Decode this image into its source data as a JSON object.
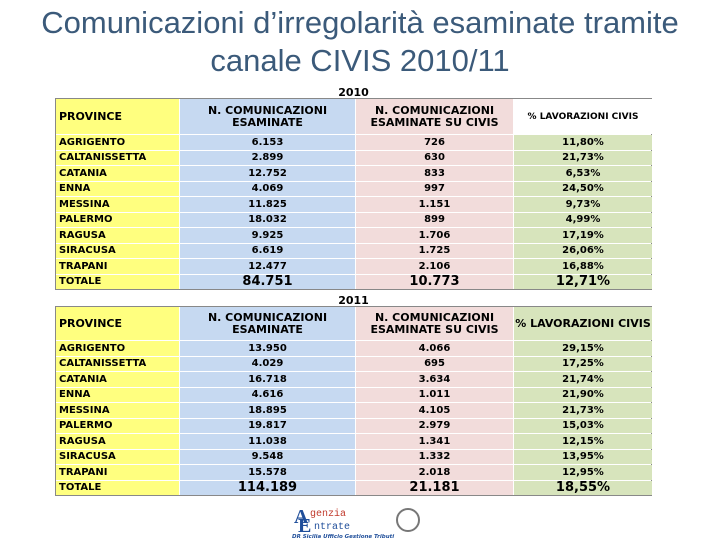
{
  "title": "Comunicazioni d’irregolarità esaminate tramite canale CIVIS 2010/11",
  "tables": [
    {
      "year": "2010",
      "headers": [
        "PROVINCE",
        "N. COMUNICAZIONI ESAMINATE",
        "N. COMUNICAZIONI ESAMINATE SU CIVIS",
        "% LAVORAZIONI CIVIS"
      ],
      "rows": [
        [
          "AGRIGENTO",
          "6.153",
          "726",
          "11,80%"
        ],
        [
          "CALTANISSETTA",
          "2.899",
          "630",
          "21,73%"
        ],
        [
          "CATANIA",
          "12.752",
          "833",
          "6,53%"
        ],
        [
          "ENNA",
          "4.069",
          "997",
          "24,50%"
        ],
        [
          "MESSINA",
          "11.825",
          "1.151",
          "9,73%"
        ],
        [
          "PALERMO",
          "18.032",
          "899",
          "4,99%"
        ],
        [
          "RAGUSA",
          "9.925",
          "1.706",
          "17,19%"
        ],
        [
          "SIRACUSA",
          "6.619",
          "1.725",
          "26,06%"
        ],
        [
          "TRAPANI",
          "12.477",
          "2.106",
          "16,88%"
        ],
        [
          "TOTALE",
          "84.751",
          "10.773",
          "12,71%"
        ]
      ]
    },
    {
      "year": "2011",
      "headers": [
        "PROVINCE",
        "N. COMUNICAZIONI ESAMINATE",
        "N. COMUNICAZIONI ESAMINATE SU CIVIS",
        "% LAVORAZIONI CIVIS"
      ],
      "rows": [
        [
          "AGRIGENTO",
          "13.950",
          "4.066",
          "29,15%"
        ],
        [
          "CALTANISSETTA",
          "4.029",
          "695",
          "17,25%"
        ],
        [
          "CATANIA",
          "16.718",
          "3.634",
          "21,74%"
        ],
        [
          "ENNA",
          "4.616",
          "1.011",
          "21,90%"
        ],
        [
          "MESSINA",
          "18.895",
          "4.105",
          "21,73%"
        ],
        [
          "PALERMO",
          "19.817",
          "2.979",
          "15,03%"
        ],
        [
          "RAGUSA",
          "11.038",
          "1.341",
          "12,15%"
        ],
        [
          "SIRACUSA",
          "9.548",
          "1.332",
          "13,95%"
        ],
        [
          "TRAPANI",
          "15.578",
          "2.018",
          "12,95%"
        ],
        [
          "TOTALE",
          "114.189",
          "21.181",
          "18,55%"
        ]
      ]
    }
  ],
  "logo": {
    "initial_1": "A",
    "word_1": "genzia",
    "initial_2": "E",
    "word_2": "ntrate",
    "caption": "DR Sicilia Ufficio Gestione Tributi"
  }
}
